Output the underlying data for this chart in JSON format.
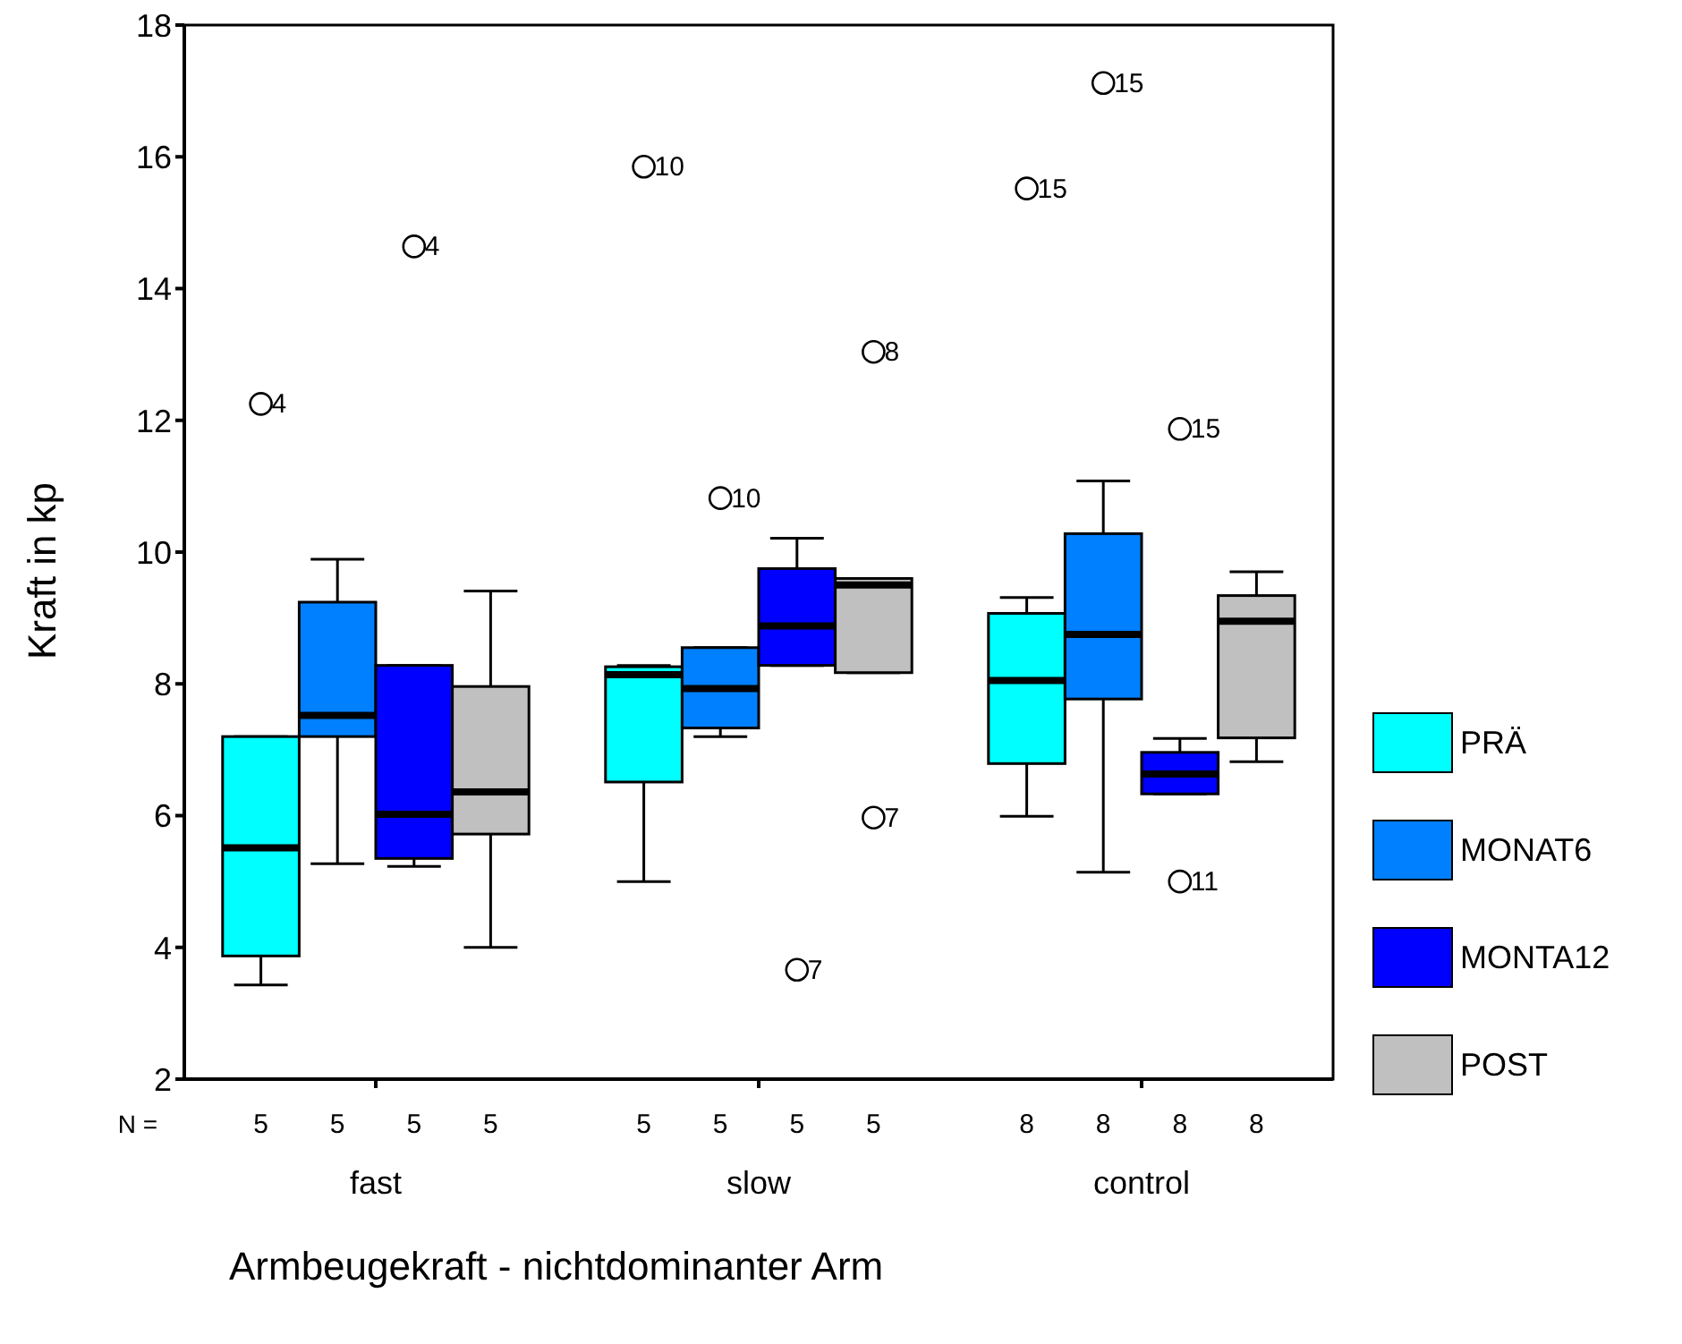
{
  "chart_data": {
    "type": "box",
    "xlabel": "Armbeugekraft - nichtdominanter Arm",
    "ylabel": "Kraft in kp",
    "categories": [
      "fast",
      "slow",
      "control"
    ],
    "ylim": [
      2,
      18
    ],
    "yticks": [
      2,
      4,
      6,
      8,
      10,
      12,
      14,
      16,
      18
    ],
    "legend": "right",
    "series": [
      {
        "name": "PRÄ",
        "color": "#00ffff",
        "boxes": [
          {
            "low": 3.43,
            "q1": 3.87,
            "median": 5.51,
            "q3": 7.2,
            "high": 7.2,
            "outliers": [
              12.25
            ]
          },
          {
            "low": 5.0,
            "q1": 6.51,
            "median": 8.14,
            "q3": 8.26,
            "high": 8.28,
            "outliers": [
              15.85
            ]
          },
          {
            "low": 5.99,
            "q1": 6.79,
            "median": 8.05,
            "q3": 9.07,
            "high": 9.31,
            "outliers": [
              15.52
            ]
          }
        ]
      },
      {
        "name": "MONAT6",
        "color": "#0080ff",
        "boxes": [
          {
            "low": 5.27,
            "q1": 7.2,
            "median": 7.52,
            "q3": 9.24,
            "high": 9.89
          },
          {
            "low": 7.2,
            "q1": 7.33,
            "median": 7.93,
            "q3": 8.55,
            "high": 8.55,
            "outliers": [
              10.82
            ]
          },
          {
            "low": 5.14,
            "q1": 7.77,
            "median": 8.75,
            "q3": 10.28,
            "high": 11.08,
            "outliers": [
              17.12
            ]
          }
        ]
      },
      {
        "name": "MONTA12",
        "color": "#0000ff",
        "boxes": [
          {
            "low": 5.23,
            "q1": 5.35,
            "median": 6.02,
            "q3": 8.28,
            "high": 8.28,
            "outliers": [
              14.64
            ]
          },
          {
            "low": 8.28,
            "q1": 8.28,
            "median": 8.88,
            "q3": 9.75,
            "high": 10.21,
            "outliers": [
              3.66
            ]
          },
          {
            "low": 6.33,
            "q1": 6.33,
            "median": 6.63,
            "q3": 6.96,
            "high": 7.17,
            "outliers": [
              11.87,
              5.0
            ]
          }
        ]
      },
      {
        "name": "POST",
        "color": "#c0c0c0",
        "boxes": [
          {
            "low": 4.0,
            "q1": 5.72,
            "median": 6.36,
            "q3": 7.96,
            "high": 9.41
          },
          {
            "low": 8.17,
            "q1": 8.17,
            "median": 9.5,
            "q3": 9.6,
            "high": 9.6,
            "outliers": [
              13.04,
              5.97
            ]
          },
          {
            "low": 6.82,
            "q1": 7.18,
            "median": 8.95,
            "q3": 9.34,
            "high": 9.7
          }
        ]
      }
    ],
    "annotations": [
      "N =",
      "4",
      "10",
      "15",
      "10",
      "15",
      "4",
      "7",
      "15",
      "11",
      "8",
      "7",
      "5",
      "5",
      "5",
      "5",
      "5",
      "5",
      "5",
      "5",
      "8",
      "8",
      "8",
      "8"
    ]
  }
}
